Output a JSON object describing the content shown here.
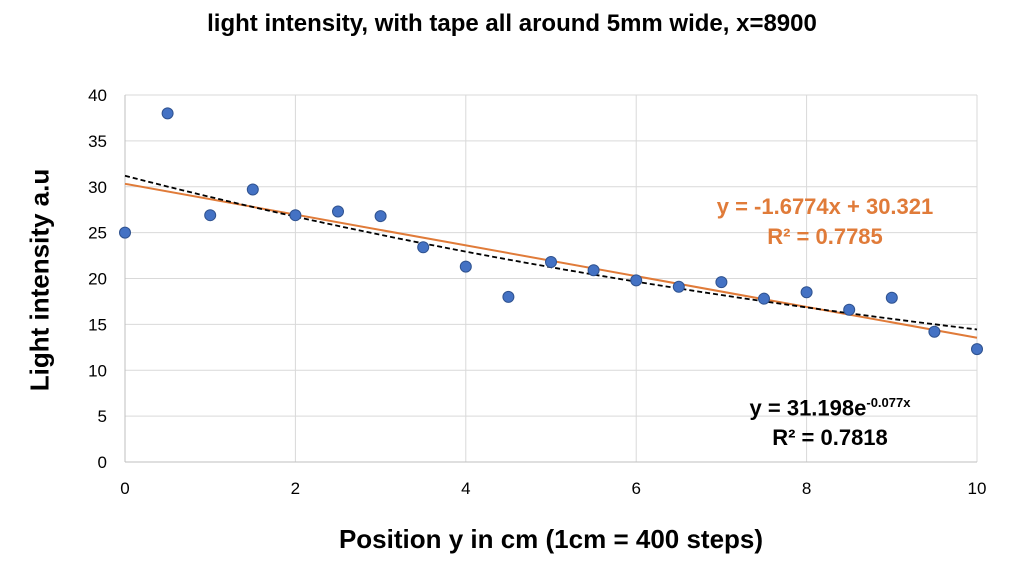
{
  "chart_data": {
    "type": "scatter",
    "title": "light intensity, with tape all around 5mm wide, x=8900",
    "xlabel": "Position y in cm (1cm = 400 steps)",
    "ylabel": "Light intensity a.u",
    "xlim": [
      0,
      10
    ],
    "ylim": [
      0,
      40
    ],
    "x_ticks": [
      0,
      2,
      4,
      6,
      8,
      10
    ],
    "y_ticks": [
      0,
      5,
      10,
      15,
      20,
      25,
      30,
      35,
      40
    ],
    "grid": true,
    "marker_color": "#4472c4",
    "points": [
      {
        "x": 0,
        "y": 25.0
      },
      {
        "x": 0.5,
        "y": 38.0
      },
      {
        "x": 1.0,
        "y": 26.9
      },
      {
        "x": 1.5,
        "y": 29.7
      },
      {
        "x": 2.0,
        "y": 26.9
      },
      {
        "x": 2.5,
        "y": 27.3
      },
      {
        "x": 3.0,
        "y": 26.8
      },
      {
        "x": 3.5,
        "y": 23.4
      },
      {
        "x": 4.0,
        "y": 21.3
      },
      {
        "x": 4.5,
        "y": 18.0
      },
      {
        "x": 5.0,
        "y": 21.8
      },
      {
        "x": 5.5,
        "y": 20.9
      },
      {
        "x": 6.0,
        "y": 19.8
      },
      {
        "x": 6.5,
        "y": 19.1
      },
      {
        "x": 7.0,
        "y": 19.6
      },
      {
        "x": 7.5,
        "y": 17.8
      },
      {
        "x": 8.0,
        "y": 18.5
      },
      {
        "x": 8.5,
        "y": 16.6
      },
      {
        "x": 9.0,
        "y": 17.9
      },
      {
        "x": 9.5,
        "y": 14.2
      },
      {
        "x": 10.0,
        "y": 12.3
      }
    ],
    "trendlines": [
      {
        "kind": "linear",
        "slope": -1.6774,
        "intercept": 30.321,
        "color": "#e07b39",
        "style": "solid",
        "equation_label": "y = -1.6774x + 30.321",
        "r2_label": "R² = 0.7785"
      },
      {
        "kind": "exponential",
        "a": 31.198,
        "b": -0.077,
        "color": "#000000",
        "style": "dashed",
        "equation_base": "y = 31.198e",
        "equation_exponent": "-0.077x",
        "r2_label": "R² = 0.7818"
      }
    ]
  }
}
